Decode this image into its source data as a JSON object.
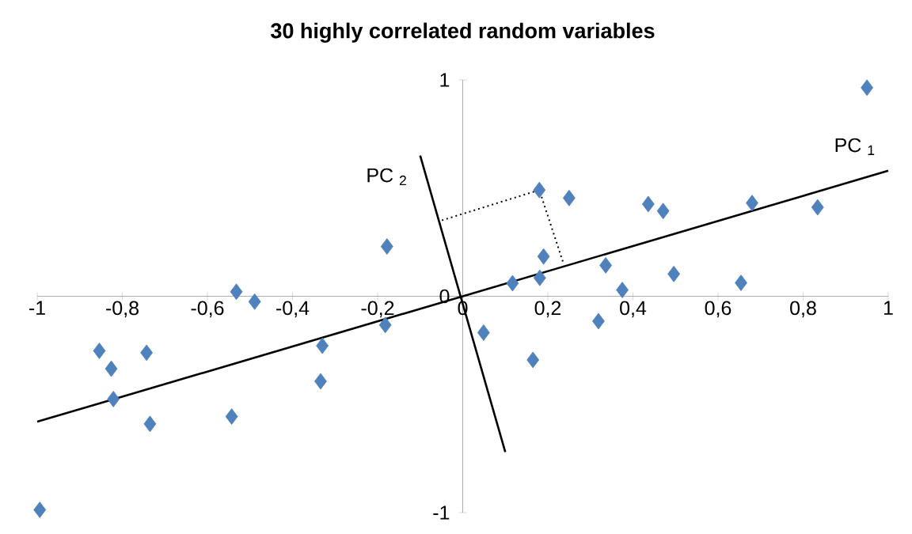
{
  "chart_data": {
    "type": "scatter",
    "title": "30 highly correlated random variables",
    "xlim": [
      -1,
      1
    ],
    "ylim": [
      -1,
      1
    ],
    "xticks": [
      -1,
      {
        "value": -0.8,
        "label": "-0,8"
      },
      {
        "value": -0.6,
        "label": "-0,6"
      },
      {
        "value": -0.4,
        "label": "-0,4"
      },
      {
        "value": -0.2,
        "label": "-0,2"
      },
      0,
      {
        "value": 0.2,
        "label": "0,2"
      },
      {
        "value": 0.4,
        "label": "0,4"
      },
      {
        "value": 0.6,
        "label": "0,6"
      },
      {
        "value": 0.8,
        "label": "0,8"
      },
      1
    ],
    "yticks": [
      -1,
      0,
      1
    ],
    "grid": false,
    "legend": false,
    "series": [
      {
        "color": "#4f81bd",
        "marker": "diamond",
        "x": [
          0.95,
          0.834,
          0.68,
          0.654,
          0.496,
          0.471,
          0.436,
          0.375,
          0.336,
          0.319,
          0.25,
          0.18,
          0.19,
          0.181,
          0.117,
          0.049,
          0.165,
          -0.994,
          -0.854,
          -0.826,
          -0.821,
          -0.743,
          -0.735,
          -0.543,
          -0.532,
          -0.489,
          -0.33,
          -0.334,
          -0.178,
          -0.182
        ],
        "values": [
          0.964,
          0.411,
          0.431,
          0.062,
          0.103,
          0.394,
          0.426,
          0.029,
          0.143,
          -0.115,
          0.454,
          0.491,
          0.184,
          0.085,
          0.06,
          -0.168,
          -0.294,
          -0.987,
          -0.252,
          -0.335,
          -0.475,
          -0.261,
          -0.59,
          -0.556,
          0.021,
          -0.025,
          -0.229,
          -0.393,
          0.23,
          -0.133
        ]
      },
      {
        "type": "line",
        "name": "PC $_{1}$",
        "color": "#000000",
        "marker": "none",
        "line_style": "solid",
        "x": [
          -1,
          1
        ],
        "values": [
          -0.58,
          0.58
        ]
      },
      {
        "type": "line",
        "name": "PC $_{2}$",
        "color": "#000000",
        "marker": "none",
        "line_style": "solid",
        "x": [
          -0.1,
          0.1
        ],
        "values": [
          0.65,
          -0.72
        ]
      },
      {
        "type": "line",
        "color": "#000000",
        "marker": "none",
        "line_style": "dotted",
        "x": [
          -0.049,
          0.18,
          0.237
        ],
        "values": [
          0.351,
          0.491,
          0.15
        ]
      }
    ]
  }
}
